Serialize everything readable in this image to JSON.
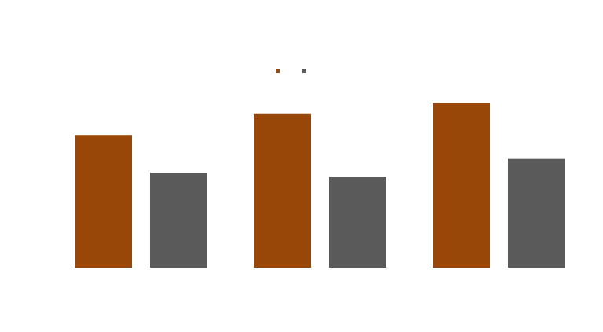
{
  "chart_data": {
    "type": "bar",
    "title": "",
    "xlabel": "",
    "ylabel": "",
    "categories": [
      "",
      "",
      ""
    ],
    "series": [
      {
        "color": "#994709",
        "values": [
          172,
          200,
          214
        ]
      },
      {
        "color": "#5a5a5a",
        "values": [
          123,
          118,
          142
        ]
      }
    ],
    "ylim": [
      0,
      250
    ],
    "grid": false,
    "legend": {
      "position": "top-center",
      "entries": [
        "",
        ""
      ]
    }
  }
}
